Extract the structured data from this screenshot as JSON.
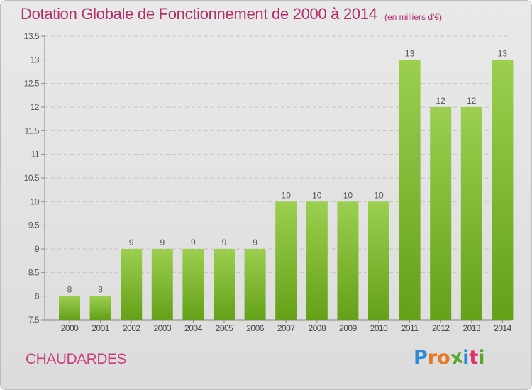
{
  "header": {
    "title": "Dotation Globale de Fonctionnement de 2000 à 2014",
    "units": "(en milliers d'€)"
  },
  "footer": {
    "commune": "CHAUDARDES",
    "brand": "Proxiti"
  },
  "colors": {
    "title": "#b0306a",
    "bar_top": "#9ccf50",
    "bar_bottom": "#64a018",
    "background": "#e3e3e3",
    "logo_letters": [
      "#2f8ad8",
      "#e87722",
      "#e87722",
      "#5aa82a",
      "#2f8ad8",
      "#e0306a",
      "#5aa82a"
    ]
  },
  "chart_data": {
    "type": "bar",
    "title": "Dotation Globale de Fonctionnement de 2000 à 2014",
    "subtitle": "(en milliers d'€)",
    "categories": [
      "2000",
      "2001",
      "2002",
      "2003",
      "2004",
      "2005",
      "2006",
      "2007",
      "2008",
      "2009",
      "2010",
      "2011",
      "2012",
      "2013",
      "2014"
    ],
    "values": [
      8,
      8,
      9,
      9,
      9,
      9,
      9,
      10,
      10,
      10,
      10,
      13,
      12,
      12,
      13
    ],
    "data_labels": [
      "8",
      "8",
      "9",
      "9",
      "9",
      "9",
      "9",
      "10",
      "10",
      "10",
      "10",
      "13",
      "12",
      "12",
      "13"
    ],
    "ylim": [
      7.5,
      13.5
    ],
    "yticks": [
      "7.5",
      "8",
      "8.5",
      "9",
      "9.5",
      "10",
      "10.5",
      "11",
      "11.5",
      "12",
      "12.5",
      "13",
      "13.5"
    ],
    "grid": true,
    "xlabel": "",
    "ylabel": ""
  }
}
